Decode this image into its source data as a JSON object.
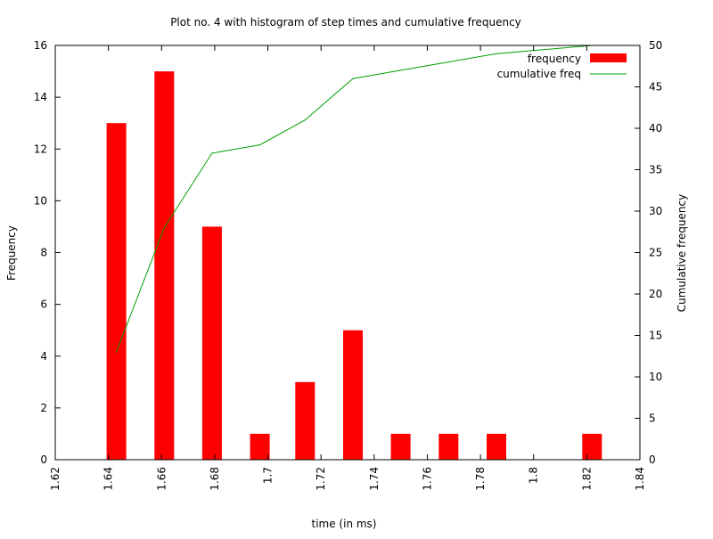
{
  "chart_data": {
    "type": "bar",
    "title": "Plot no. 4 with histogram of step times and cumulative frequency",
    "xlabel": "time (in ms)",
    "ylabel": "Frequency",
    "y2label": "Cumulative frequency",
    "xlim": [
      1.62,
      1.84
    ],
    "ylim": [
      0,
      16
    ],
    "y2lim": [
      0,
      50
    ],
    "x_ticks": [
      "1.62",
      "1.64",
      "1.66",
      "1.68",
      "1.7",
      "1.72",
      "1.74",
      "1.76",
      "1.78",
      "1.8",
      "1.82",
      "1.84"
    ],
    "y_ticks": [
      "0",
      "2",
      "4",
      "6",
      "8",
      "10",
      "12",
      "14",
      "16"
    ],
    "y2_ticks": [
      "0",
      "5",
      "10",
      "15",
      "20",
      "25",
      "30",
      "35",
      "40",
      "45",
      "50"
    ],
    "legend_position": "top-right",
    "grid": false,
    "series": [
      {
        "name": "frequency",
        "kind": "bar",
        "color": "#ff0000",
        "axis": "left",
        "x": [
          1.643,
          1.661,
          1.679,
          1.697,
          1.714,
          1.732,
          1.75,
          1.768,
          1.786,
          1.822
        ],
        "values": [
          13,
          15,
          9,
          1,
          3,
          5,
          1,
          1,
          1,
          1
        ]
      },
      {
        "name": "cumulative freq",
        "kind": "line",
        "color": "#00a000",
        "axis": "right",
        "x": [
          1.643,
          1.661,
          1.679,
          1.697,
          1.714,
          1.732,
          1.75,
          1.768,
          1.786,
          1.822
        ],
        "values": [
          13,
          28,
          37,
          38,
          41,
          46,
          47,
          48,
          49,
          50
        ]
      }
    ]
  }
}
